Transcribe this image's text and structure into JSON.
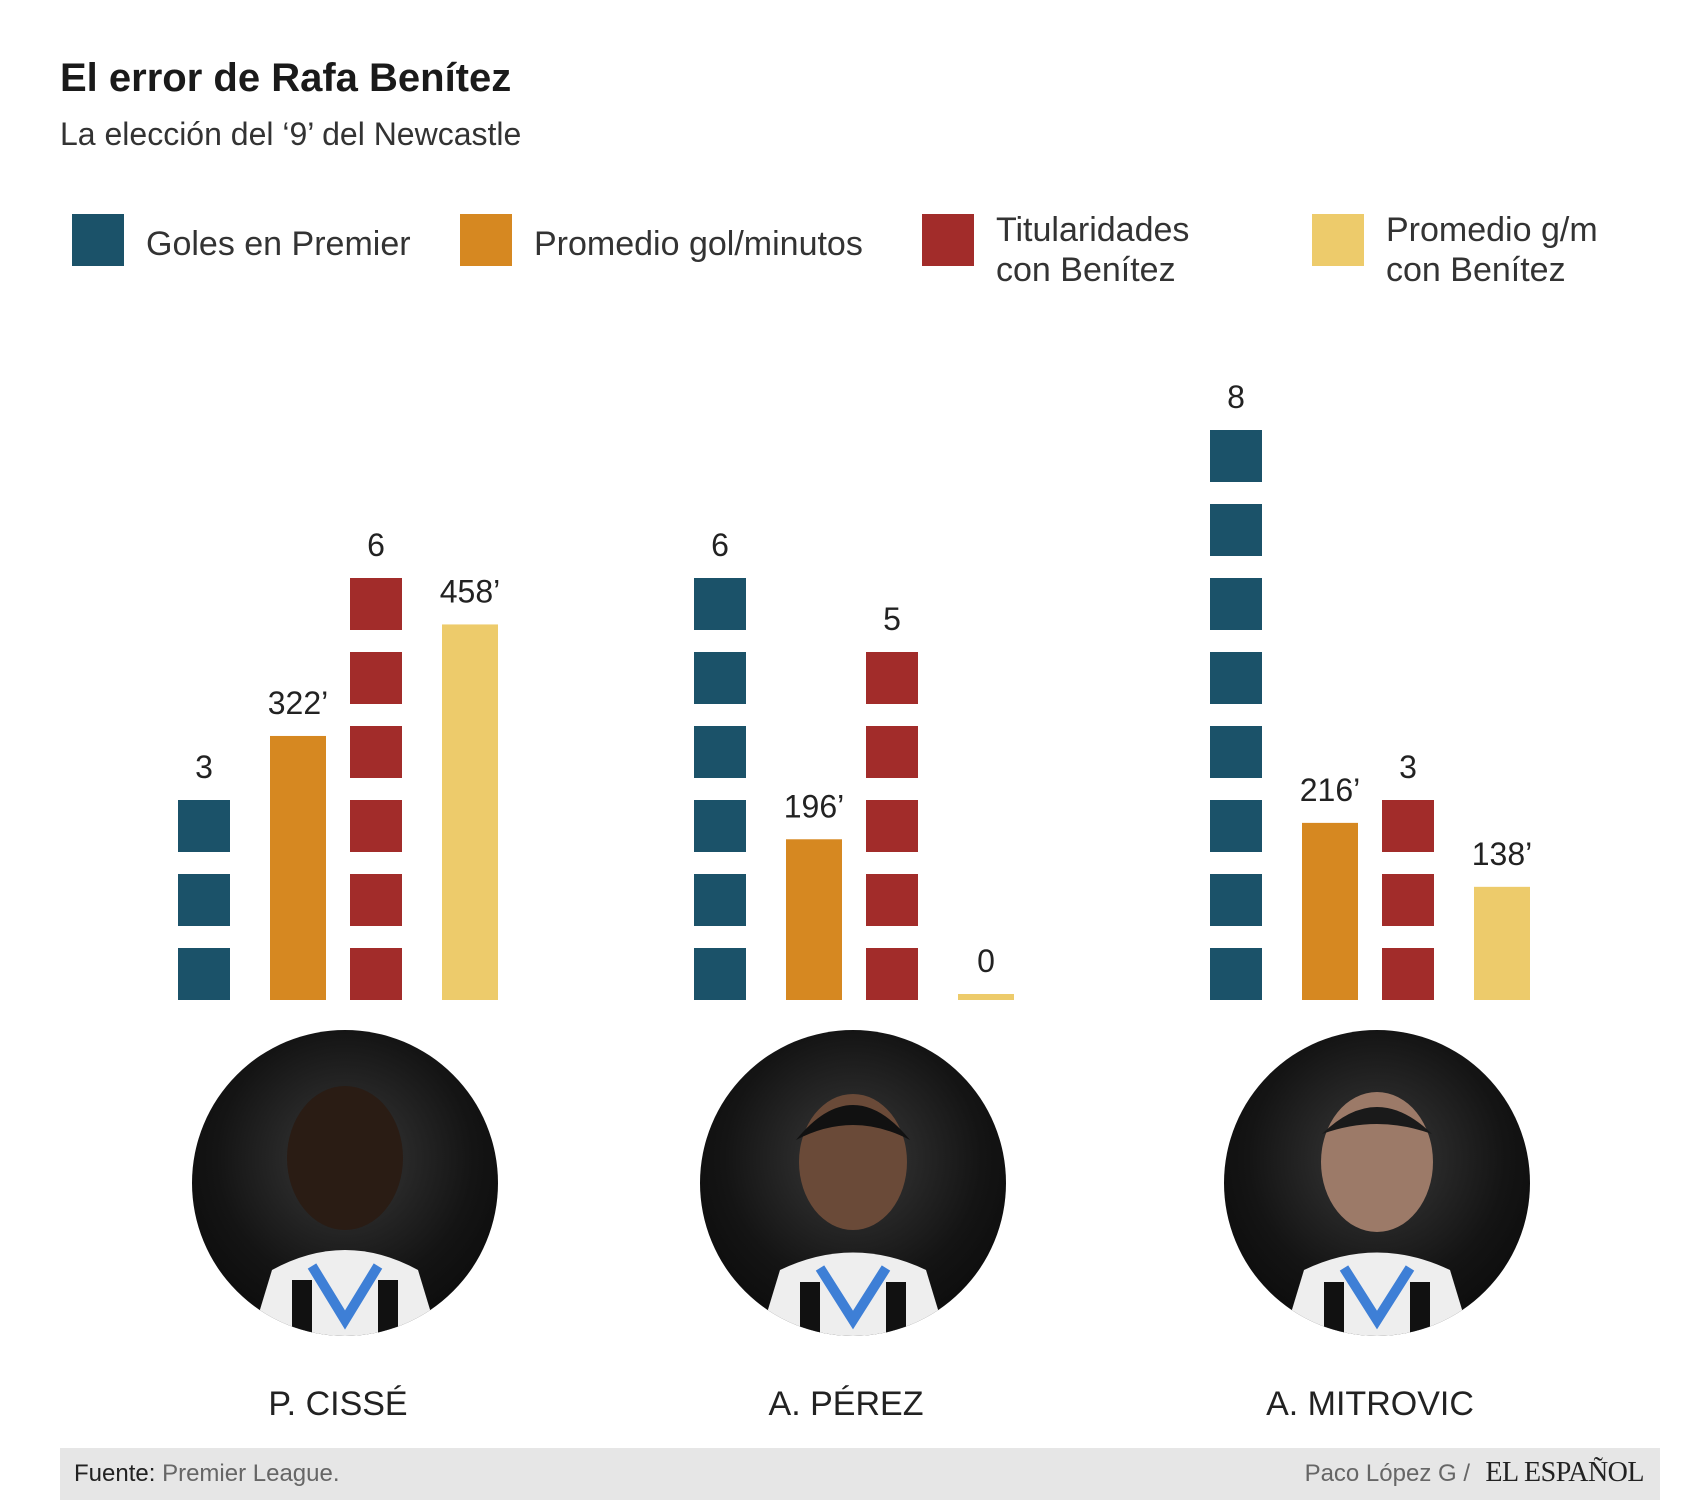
{
  "header": {
    "title": "El error de Rafa Benítez",
    "subtitle": "La elección del ‘9’ del Newcastle"
  },
  "legend": [
    {
      "lines": [
        "Goles en Premier"
      ],
      "color": "#1b5269"
    },
    {
      "lines": [
        "Promedio gol/minutos"
      ],
      "color": "#d68821"
    },
    {
      "lines": [
        "Titularidades",
        "con Benítez"
      ],
      "color": "#a22c2a"
    },
    {
      "lines": [
        "Promedio g/m",
        "con Benítez"
      ],
      "color": "#edcb6b"
    }
  ],
  "chart_data": {
    "type": "bar",
    "title": "El error de Rafa Benítez",
    "subtitle": "La elección del ‘9’ del Newcastle",
    "categories": [
      "P. CISSÉ",
      "A. PÉREZ",
      "A. MITROVIC"
    ],
    "series": [
      {
        "name": "Goles en Premier",
        "style": "stacked-units",
        "color": "#1b5269",
        "values": [
          3,
          6,
          8
        ],
        "labels": [
          "3",
          "6",
          "8"
        ]
      },
      {
        "name": "Promedio gol/minutos",
        "style": "bar",
        "color": "#d68821",
        "values": [
          322,
          196,
          216
        ],
        "labels": [
          "322’",
          "196’",
          "216’"
        ]
      },
      {
        "name": "Titularidades con Benítez",
        "style": "stacked-units",
        "color": "#a22c2a",
        "values": [
          6,
          5,
          3
        ],
        "labels": [
          "6",
          "5",
          "3"
        ]
      },
      {
        "name": "Promedio g/m con Benítez",
        "style": "bar",
        "color": "#edcb6b",
        "values": [
          458,
          0,
          138
        ],
        "labels": [
          "458’",
          "0",
          "138’"
        ]
      }
    ],
    "xlabel": "",
    "ylabel": "",
    "grid": false,
    "legend_position": "top"
  },
  "players": [
    "P. CISSÉ",
    "A. PÉREZ",
    "A. MITROVIC"
  ],
  "footer": {
    "source_label": "Fuente:",
    "source_value": "Premier League.",
    "credit": "Paco López G /",
    "brand": "EL ESPAÑOL"
  }
}
